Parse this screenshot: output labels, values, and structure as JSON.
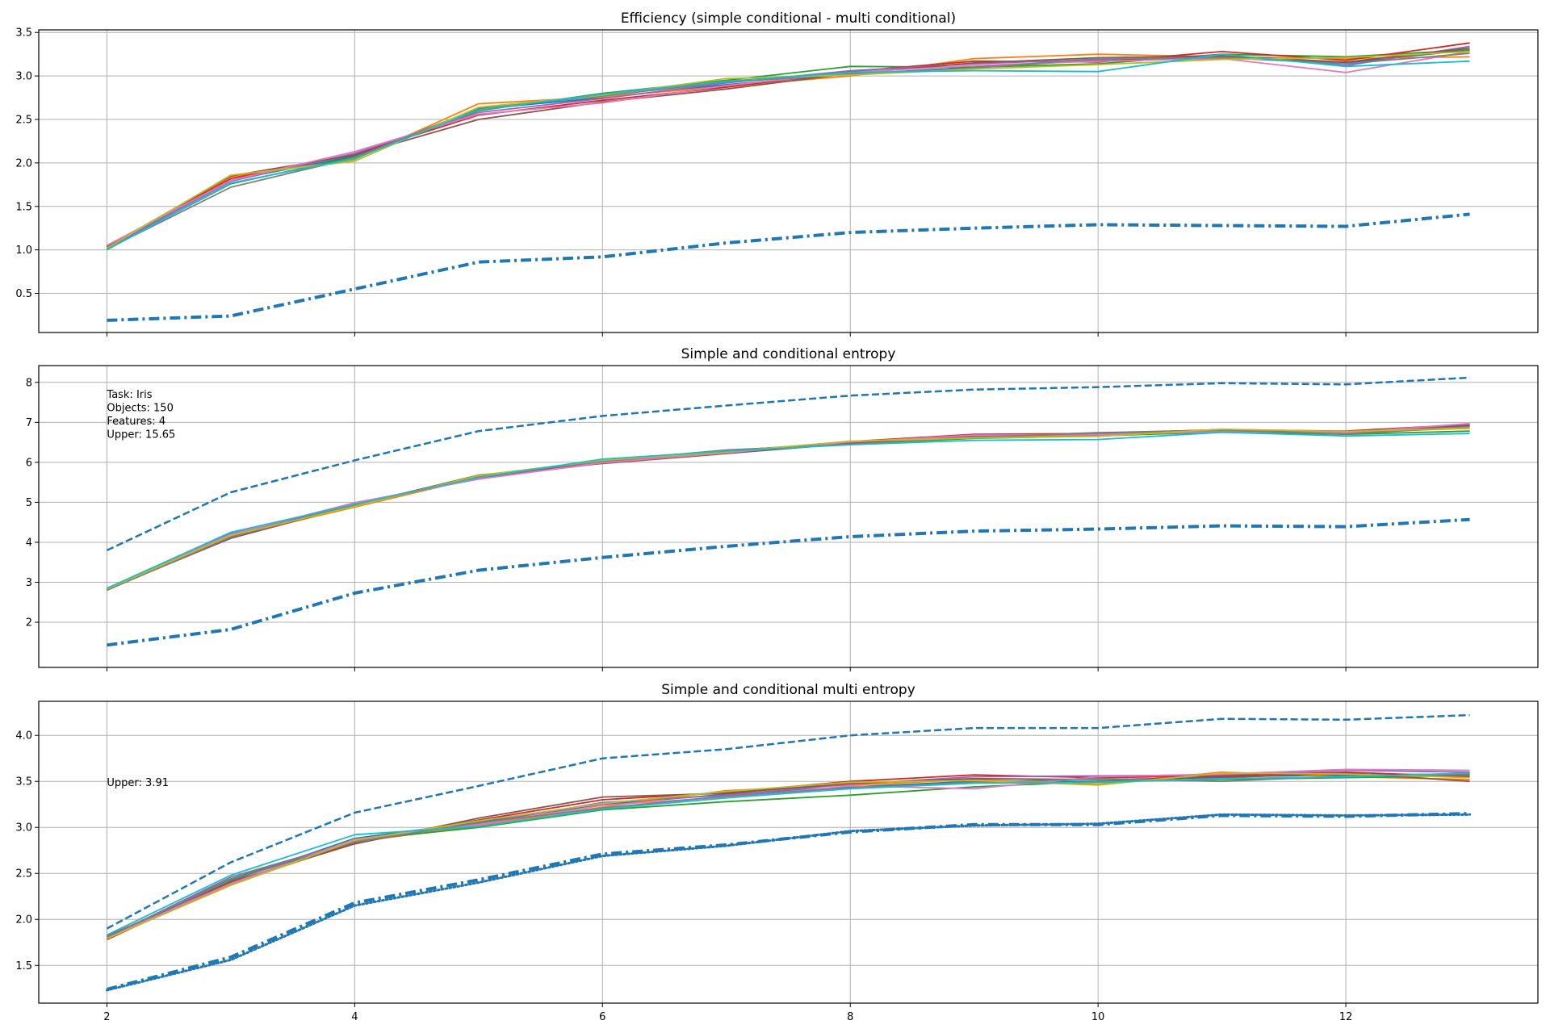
{
  "chart_data": [
    {
      "type": "line",
      "title": "Efficiency (simple conditional - multi conditional)",
      "x": [
        2,
        3,
        4,
        5,
        6,
        7,
        8,
        9,
        10,
        11,
        12,
        13
      ],
      "xlim": [
        1.45,
        13.55
      ],
      "ylim": [
        0.05,
        3.53
      ],
      "xticks": [
        "2",
        "4",
        "6",
        "8",
        "10",
        "12"
      ],
      "show_xtick_labels": false,
      "yticks": [
        "0.5",
        "1.0",
        "1.5",
        "2.0",
        "2.5",
        "3.0",
        "3.5"
      ],
      "grid": true,
      "notes": [],
      "series": [
        {
          "style": "solid",
          "color": "#1f77b4",
          "values": [
            1.02,
            1.8,
            2.08,
            2.62,
            2.75,
            2.9,
            3.02,
            3.1,
            3.18,
            3.22,
            3.15,
            3.3
          ]
        },
        {
          "style": "solid",
          "color": "#ff7f0e",
          "values": [
            1.03,
            1.84,
            2.04,
            2.68,
            2.76,
            2.88,
            3.0,
            3.2,
            3.25,
            3.22,
            3.2,
            3.22
          ]
        },
        {
          "style": "solid",
          "color": "#2ca02c",
          "values": [
            1.01,
            1.76,
            2.07,
            2.6,
            2.8,
            2.95,
            3.11,
            3.1,
            3.14,
            3.25,
            3.22,
            3.3
          ]
        },
        {
          "style": "solid",
          "color": "#d62728",
          "values": [
            1.04,
            1.82,
            2.1,
            2.55,
            2.72,
            2.87,
            3.05,
            3.17,
            3.16,
            3.28,
            3.18,
            3.38
          ]
        },
        {
          "style": "solid",
          "color": "#9467bd",
          "values": [
            1.02,
            1.79,
            2.11,
            2.58,
            2.74,
            2.92,
            3.06,
            3.14,
            3.19,
            3.24,
            3.12,
            3.34
          ]
        },
        {
          "style": "solid",
          "color": "#8c564b",
          "values": [
            1.03,
            1.85,
            2.09,
            2.5,
            2.7,
            2.85,
            3.03,
            3.15,
            3.21,
            3.23,
            3.16,
            3.32
          ]
        },
        {
          "style": "solid",
          "color": "#e377c2",
          "values": [
            1.05,
            1.8,
            2.13,
            2.56,
            2.69,
            2.89,
            3.04,
            3.12,
            3.17,
            3.2,
            3.04,
            3.28
          ]
        },
        {
          "style": "solid",
          "color": "#7f7f7f",
          "values": [
            1.01,
            1.72,
            2.06,
            2.63,
            2.77,
            2.93,
            3.02,
            3.09,
            3.2,
            3.21,
            3.14,
            3.26
          ]
        },
        {
          "style": "solid",
          "color": "#bcbd22",
          "values": [
            1.02,
            1.86,
            2.02,
            2.64,
            2.78,
            2.97,
            3.01,
            3.08,
            3.13,
            3.19,
            3.21,
            3.28
          ]
        },
        {
          "style": "solid",
          "color": "#17becf",
          "values": [
            1.0,
            1.77,
            2.05,
            2.61,
            2.79,
            2.94,
            3.04,
            3.06,
            3.05,
            3.25,
            3.11,
            3.17
          ]
        },
        {
          "style": "dashdot",
          "color": "#1f77b4",
          "values": [
            0.19,
            0.24,
            0.55,
            0.86,
            0.92,
            1.08,
            1.2,
            1.25,
            1.29,
            1.28,
            1.27,
            1.41
          ]
        }
      ]
    },
    {
      "type": "line",
      "title": "Simple and conditional entropy",
      "x": [
        2,
        3,
        4,
        5,
        6,
        7,
        8,
        9,
        10,
        11,
        12,
        13
      ],
      "xlim": [
        1.45,
        13.55
      ],
      "ylim": [
        0.87,
        8.42
      ],
      "xticks": [
        "2",
        "4",
        "6",
        "8",
        "10",
        "12"
      ],
      "show_xtick_labels": false,
      "yticks": [
        "2",
        "3",
        "4",
        "5",
        "6",
        "7",
        "8"
      ],
      "grid": true,
      "notes": [
        "Task: Iris",
        "Objects: 150",
        "Features: 4",
        "Upper: 15.65"
      ],
      "series": [
        {
          "style": "dashed",
          "color": "#1f77b4",
          "values": [
            3.8,
            5.25,
            6.05,
            6.78,
            7.16,
            7.42,
            7.67,
            7.82,
            7.88,
            7.98,
            7.95,
            8.12
          ]
        },
        {
          "style": "solid",
          "color": "#1f77b4",
          "values": [
            2.83,
            4.22,
            4.95,
            5.65,
            6.02,
            6.28,
            6.48,
            6.65,
            6.7,
            6.78,
            6.72,
            6.9
          ]
        },
        {
          "style": "solid",
          "color": "#ff7f0e",
          "values": [
            2.82,
            4.15,
            4.88,
            5.62,
            6.0,
            6.25,
            6.5,
            6.62,
            6.68,
            6.8,
            6.75,
            6.85
          ]
        },
        {
          "style": "solid",
          "color": "#2ca02c",
          "values": [
            2.84,
            4.18,
            4.92,
            5.66,
            6.04,
            6.3,
            6.46,
            6.6,
            6.66,
            6.76,
            6.7,
            6.78
          ]
        },
        {
          "style": "solid",
          "color": "#d62728",
          "values": [
            2.81,
            4.12,
            4.97,
            5.6,
            5.98,
            6.27,
            6.52,
            6.7,
            6.72,
            6.82,
            6.78,
            6.95
          ]
        },
        {
          "style": "solid",
          "color": "#9467bd",
          "values": [
            2.83,
            4.16,
            4.96,
            5.63,
            6.01,
            6.29,
            6.49,
            6.66,
            6.71,
            6.79,
            6.73,
            6.92
          ]
        },
        {
          "style": "solid",
          "color": "#8c564b",
          "values": [
            2.82,
            4.1,
            4.93,
            5.68,
            5.97,
            6.22,
            6.47,
            6.64,
            6.74,
            6.81,
            6.76,
            6.93
          ]
        },
        {
          "style": "solid",
          "color": "#e377c2",
          "values": [
            2.84,
            4.2,
            4.99,
            5.58,
            5.99,
            6.24,
            6.51,
            6.68,
            6.69,
            6.77,
            6.74,
            6.97
          ]
        },
        {
          "style": "solid",
          "color": "#7f7f7f",
          "values": [
            2.8,
            4.13,
            4.94,
            5.64,
            6.03,
            6.31,
            6.45,
            6.63,
            6.73,
            6.8,
            6.71,
            6.88
          ]
        },
        {
          "style": "solid",
          "color": "#bcbd22",
          "values": [
            2.83,
            4.17,
            4.9,
            5.67,
            6.05,
            6.26,
            6.53,
            6.61,
            6.65,
            6.83,
            6.77,
            6.86
          ]
        },
        {
          "style": "solid",
          "color": "#17becf",
          "values": [
            2.85,
            4.25,
            4.95,
            5.62,
            6.08,
            6.28,
            6.44,
            6.55,
            6.57,
            6.75,
            6.66,
            6.72
          ]
        },
        {
          "style": "dashdot",
          "color": "#1f77b4",
          "values": [
            1.43,
            1.82,
            2.73,
            3.3,
            3.62,
            3.9,
            4.14,
            4.28,
            4.33,
            4.41,
            4.39,
            4.57
          ]
        }
      ]
    },
    {
      "type": "line",
      "title": "Simple and conditional multi entropy",
      "x": [
        2,
        3,
        4,
        5,
        6,
        7,
        8,
        9,
        10,
        11,
        12,
        13
      ],
      "xlim": [
        1.45,
        13.55
      ],
      "ylim": [
        1.09,
        4.37
      ],
      "xticks": [
        "2",
        "4",
        "6",
        "8",
        "10",
        "12"
      ],
      "show_xtick_labels": true,
      "yticks": [
        "1.5",
        "2.0",
        "2.5",
        "3.0",
        "3.5",
        "4.0"
      ],
      "grid": true,
      "notes": [
        "Upper: 3.91"
      ],
      "series": [
        {
          "style": "dashed",
          "color": "#1f77b4",
          "values": [
            1.9,
            2.62,
            3.16,
            3.45,
            3.75,
            3.85,
            4.0,
            4.08,
            4.08,
            4.18,
            4.17,
            4.22
          ]
        },
        {
          "style": "solid",
          "color": "#1f77b4",
          "values": [
            1.8,
            2.42,
            2.88,
            3.06,
            3.25,
            3.36,
            3.44,
            3.5,
            3.5,
            3.55,
            3.57,
            3.58
          ]
        },
        {
          "style": "solid",
          "color": "#ff7f0e",
          "values": [
            1.79,
            2.38,
            2.84,
            3.02,
            3.22,
            3.4,
            3.46,
            3.52,
            3.47,
            3.6,
            3.55,
            3.52
          ]
        },
        {
          "style": "solid",
          "color": "#2ca02c",
          "values": [
            1.81,
            2.44,
            2.86,
            3.0,
            3.19,
            3.28,
            3.35,
            3.44,
            3.5,
            3.52,
            3.54,
            3.56
          ]
        },
        {
          "style": "solid",
          "color": "#d62728",
          "values": [
            1.78,
            2.4,
            2.83,
            3.08,
            3.3,
            3.38,
            3.5,
            3.57,
            3.54,
            3.56,
            3.6,
            3.55
          ]
        },
        {
          "style": "solid",
          "color": "#9467bd",
          "values": [
            1.8,
            2.46,
            2.85,
            3.04,
            3.27,
            3.35,
            3.47,
            3.55,
            3.56,
            3.57,
            3.62,
            3.6
          ]
        },
        {
          "style": "solid",
          "color": "#8c564b",
          "values": [
            1.82,
            2.41,
            2.82,
            3.1,
            3.33,
            3.37,
            3.48,
            3.53,
            3.52,
            3.54,
            3.59,
            3.5
          ]
        },
        {
          "style": "solid",
          "color": "#e377c2",
          "values": [
            1.8,
            2.39,
            2.87,
            3.03,
            3.24,
            3.33,
            3.45,
            3.42,
            3.55,
            3.58,
            3.63,
            3.62
          ]
        },
        {
          "style": "solid",
          "color": "#7f7f7f",
          "values": [
            1.81,
            2.43,
            2.84,
            3.05,
            3.21,
            3.34,
            3.43,
            3.49,
            3.53,
            3.5,
            3.56,
            3.57
          ]
        },
        {
          "style": "solid",
          "color": "#bcbd22",
          "values": [
            1.79,
            2.37,
            2.86,
            3.07,
            3.26,
            3.39,
            3.49,
            3.51,
            3.46,
            3.59,
            3.58,
            3.54
          ]
        },
        {
          "style": "solid",
          "color": "#17becf",
          "values": [
            1.83,
            2.48,
            2.92,
            3.01,
            3.2,
            3.32,
            3.42,
            3.48,
            3.49,
            3.53,
            3.55,
            3.59
          ]
        },
        {
          "style": "dashdot",
          "color": "#1f77b4",
          "values": [
            1.24,
            1.59,
            2.18,
            2.43,
            2.71,
            2.81,
            2.95,
            3.03,
            3.03,
            3.13,
            3.12,
            3.15
          ]
        },
        {
          "style": "dotted",
          "color": "#1f77b4",
          "values": [
            1.23,
            1.56,
            2.15,
            2.4,
            2.69,
            2.8,
            2.96,
            3.02,
            3.04,
            3.14,
            3.13,
            3.14
          ]
        }
      ]
    }
  ]
}
